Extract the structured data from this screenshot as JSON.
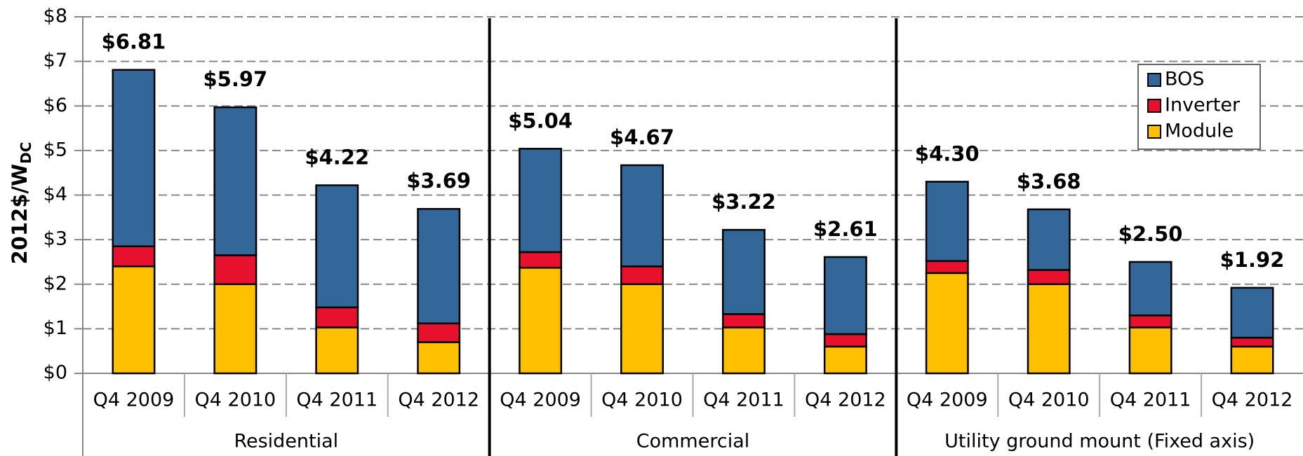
{
  "chart_data": {
    "type": "stacked_bar",
    "ylabel": "2012$/W",
    "ylabel_sub": "DC",
    "categories": [
      "Q4 2009",
      "Q4 2010",
      "Q4 2011",
      "Q4 2012",
      "Q4 2009",
      "Q4 2010",
      "Q4 2011",
      "Q4 2012",
      "Q4 2009",
      "Q4 2010",
      "Q4 2011",
      "Q4 2012"
    ],
    "groups": [
      "Residential",
      "Commercial",
      "Utility ground mount (Fixed axis)"
    ],
    "series": [
      {
        "name": "Module",
        "color": "#ffc000",
        "values": [
          2.4,
          2.0,
          1.03,
          0.7,
          2.37,
          2.0,
          1.03,
          0.6,
          2.25,
          2.0,
          1.03,
          0.6
        ]
      },
      {
        "name": "Inverter",
        "color": "#e8112d",
        "values": [
          0.45,
          0.65,
          0.45,
          0.42,
          0.35,
          0.4,
          0.3,
          0.28,
          0.27,
          0.32,
          0.27,
          0.2
        ]
      },
      {
        "name": "BOS",
        "color": "#336699",
        "values": [
          3.96,
          3.32,
          2.74,
          2.57,
          2.32,
          2.27,
          1.89,
          1.73,
          1.78,
          1.36,
          1.2,
          1.12
        ]
      }
    ],
    "totals": [
      6.81,
      5.97,
      4.22,
      3.69,
      5.04,
      4.67,
      3.22,
      2.61,
      4.3,
      3.68,
      2.5,
      1.92
    ],
    "total_labels": [
      "$6.81",
      "$5.97",
      "$4.22",
      "$3.69",
      "$5.04",
      "$4.67",
      "$3.22",
      "$2.61",
      "$4.30",
      "$3.68",
      "$2.50",
      "$1.92"
    ],
    "ylim": [
      0,
      8
    ],
    "yticks": [
      {
        "value": 0,
        "label": "$0"
      },
      {
        "value": 1,
        "label": "$1"
      },
      {
        "value": 2,
        "label": "$2"
      },
      {
        "value": 3,
        "label": "$3"
      },
      {
        "value": 4,
        "label": "$4"
      },
      {
        "value": 5,
        "label": "$5"
      },
      {
        "value": 6,
        "label": "$6"
      },
      {
        "value": 7,
        "label": "$7"
      },
      {
        "value": 8,
        "label": "$8"
      }
    ],
    "grid": true,
    "legend": "upper right"
  }
}
